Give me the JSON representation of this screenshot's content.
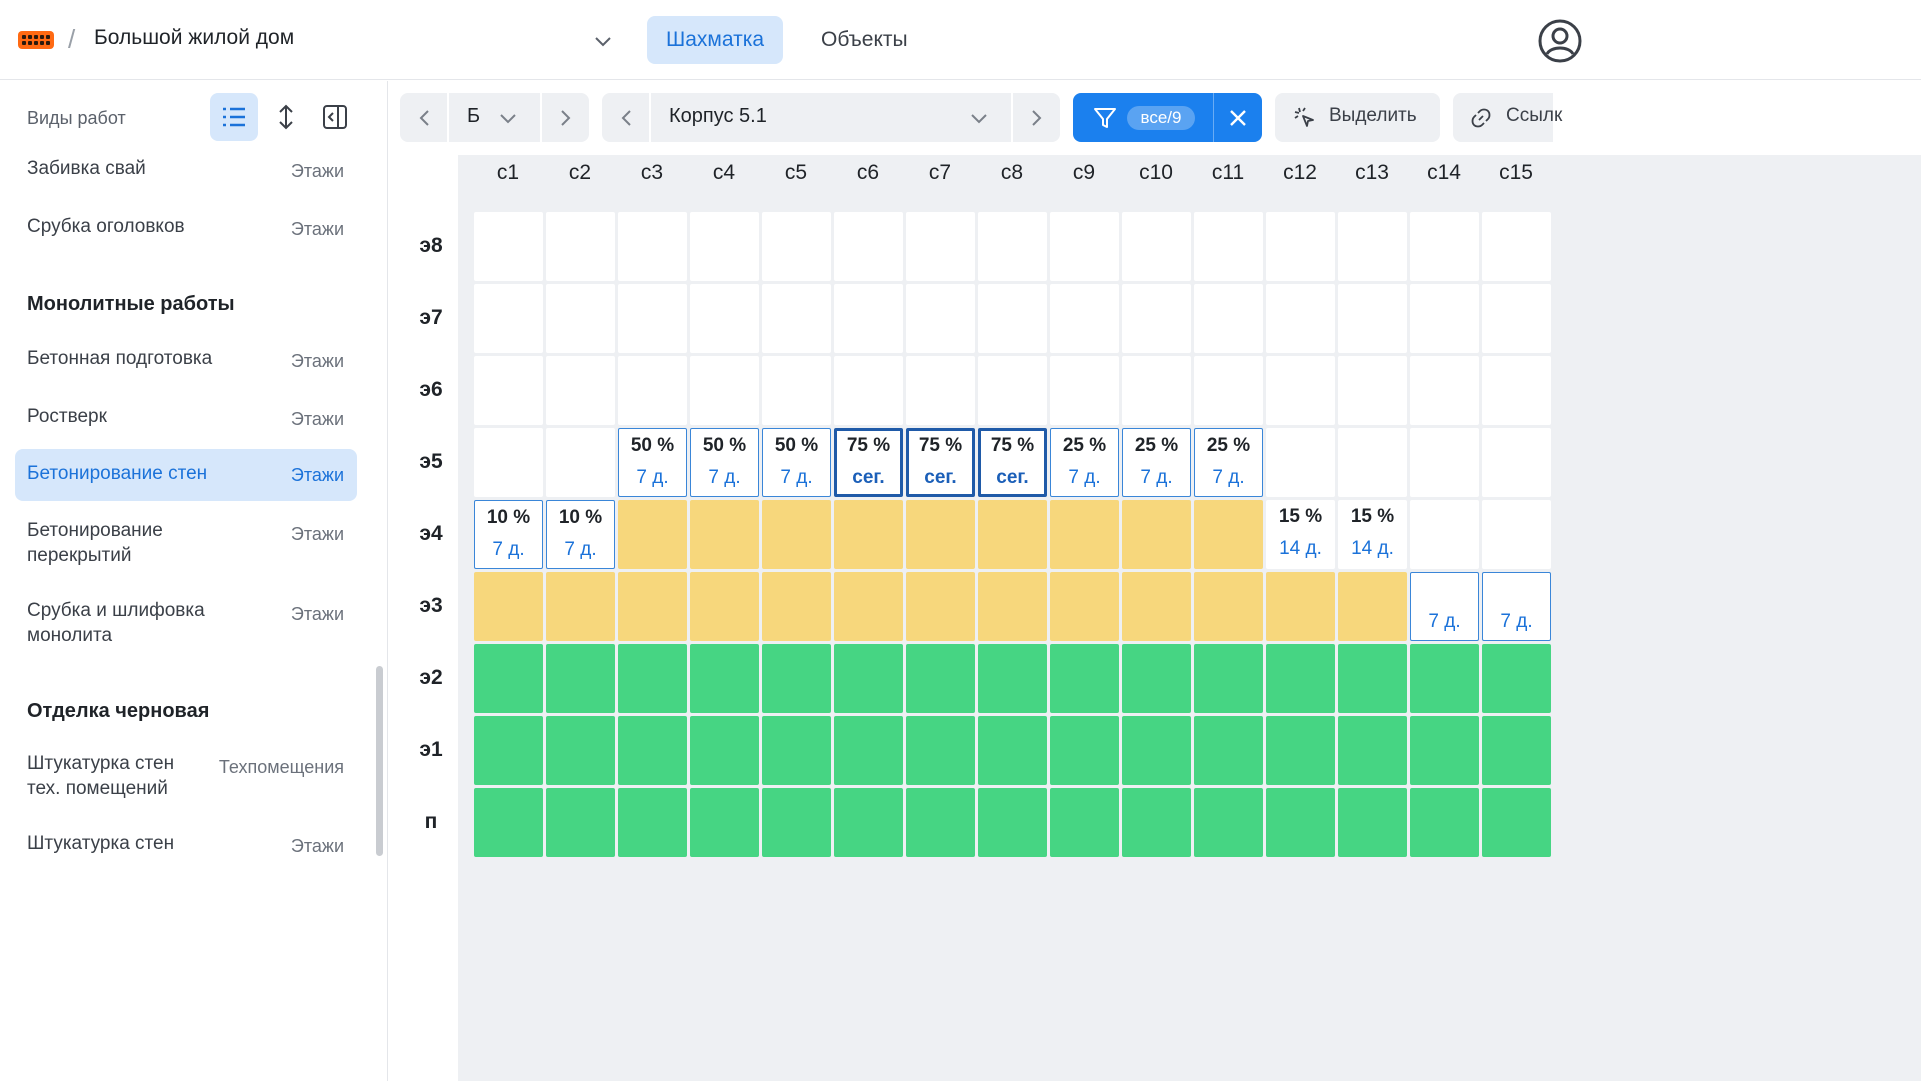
{
  "header": {
    "project": "Большой жилой дом",
    "tabs": [
      {
        "label": "Шахматка",
        "active": true
      },
      {
        "label": "Объекты",
        "active": false
      }
    ]
  },
  "sidebar": {
    "title": "Виды работ",
    "items_top": [
      {
        "name": "Забивка свай",
        "tag": "Этажи"
      },
      {
        "name": "Срубка оголовков",
        "tag": "Этажи"
      }
    ],
    "section1": "Монолитные работы",
    "items_mono": [
      {
        "name": "Бетонная подготовка",
        "tag": "Этажи"
      },
      {
        "name": "Ростверк",
        "tag": "Этажи"
      },
      {
        "name": "Бетонирование стен",
        "tag": "Этажи",
        "selected": true
      },
      {
        "name": "Бетонирование перекрытий",
        "tag": "Этажи"
      },
      {
        "name": "Срубка и шлифовка монолита",
        "tag": "Этажи"
      }
    ],
    "section2": "Отделка черновая",
    "items_rough": [
      {
        "name": "Штукатурка стен тех. помещений",
        "tag": "Техпомещения"
      },
      {
        "name": "Штукатурка стен",
        "tag": "Этажи"
      }
    ]
  },
  "toolbar": {
    "section_value": "Б",
    "building_value": "Корпус 5.1",
    "filter_badge": "все/9",
    "select_label": "Выделить",
    "link_label": "Ссылк"
  },
  "grid": {
    "columns": [
      "с1",
      "с2",
      "с3",
      "с4",
      "с5",
      "с6",
      "с7",
      "с8",
      "с9",
      "с10",
      "с11",
      "с12",
      "с13",
      "с14",
      "с15"
    ],
    "rows": [
      {
        "label": "э8",
        "cells": [
          "e",
          "e",
          "e",
          "e",
          "e",
          "e",
          "e",
          "e",
          "e",
          "e",
          "e",
          "e",
          "e",
          "e",
          "e"
        ]
      },
      {
        "label": "э7",
        "cells": [
          "e",
          "e",
          "e",
          "e",
          "e",
          "e",
          "e",
          "e",
          "e",
          "e",
          "e",
          "e",
          "e",
          "e",
          "e"
        ]
      },
      {
        "label": "э6",
        "cells": [
          "e",
          "e",
          "e",
          "e",
          "e",
          "e",
          "e",
          "e",
          "e",
          "e",
          "e",
          "e",
          "e",
          "e",
          "e"
        ]
      },
      {
        "label": "э5",
        "cells": [
          "e",
          "e",
          {
            "pct": "50 %",
            "dur": "7 д."
          },
          {
            "pct": "50 %",
            "dur": "7 д."
          },
          {
            "pct": "50 %",
            "dur": "7 д."
          },
          {
            "pct": "75 %",
            "dur": "сег.",
            "sel": true
          },
          {
            "pct": "75 %",
            "dur": "сег.",
            "sel": true
          },
          {
            "pct": "75 %",
            "dur": "сег.",
            "sel": true
          },
          {
            "pct": "25 %",
            "dur": "7 д."
          },
          {
            "pct": "25 %",
            "dur": "7 д."
          },
          {
            "pct": "25 %",
            "dur": "7 д."
          },
          "e",
          "e",
          "e",
          "e"
        ]
      },
      {
        "label": "э4",
        "cells": [
          {
            "pct": "10 %",
            "dur": "7 д."
          },
          {
            "pct": "10 %",
            "dur": "7 д."
          },
          "y",
          "y",
          "y",
          "y",
          "y",
          "y",
          "y",
          "y",
          "y",
          {
            "pct": "15 %",
            "dur": "14 д.",
            "plain": true
          },
          {
            "pct": "15 %",
            "dur": "14 д.",
            "plain": true
          },
          "e",
          "e"
        ]
      },
      {
        "label": "э3",
        "cells": [
          "y",
          "y",
          "y",
          "y",
          "y",
          "y",
          "y",
          "y",
          "y",
          "y",
          "y",
          "y",
          "y",
          {
            "pct": "",
            "dur": "7 д."
          },
          {
            "pct": "",
            "dur": "7 д."
          }
        ]
      },
      {
        "label": "э2",
        "cells": [
          "g",
          "g",
          "g",
          "g",
          "g",
          "g",
          "g",
          "g",
          "g",
          "g",
          "g",
          "g",
          "g",
          "g",
          "g"
        ]
      },
      {
        "label": "э1",
        "cells": [
          "g",
          "g",
          "g",
          "g",
          "g",
          "g",
          "g",
          "g",
          "g",
          "g",
          "g",
          "g",
          "g",
          "g",
          "g"
        ]
      },
      {
        "label": "п",
        "cells": [
          "g",
          "g",
          "g",
          "g",
          "g",
          "g",
          "g",
          "g",
          "g",
          "g",
          "g",
          "g",
          "g",
          "g",
          "g"
        ]
      }
    ]
  },
  "colors": {
    "accent": "#1b80ee",
    "done": "#46d583",
    "in_progress": "#f7d77c",
    "selected_bg": "#d6e7fb"
  }
}
